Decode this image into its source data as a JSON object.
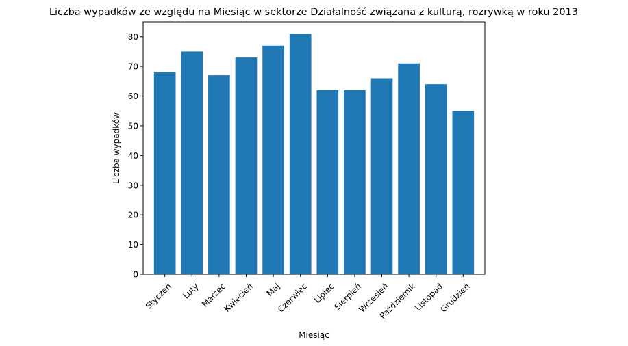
{
  "chart_data": {
    "type": "bar",
    "title": "Liczba wypadków ze względu na Miesiąc w sektorze Działalność związana z kulturą, rozrywką  w roku 2013",
    "xlabel": "Miesiąc",
    "ylabel": "Liczba wypadków",
    "categories": [
      "Styczeń",
      "Luty",
      "Marzec",
      "Kwiecień",
      "Maj",
      "Czerwiec",
      "Lipiec",
      "Sierpień",
      "Wrzesień",
      "Październik",
      "Listopad",
      "Grudzień"
    ],
    "values": [
      68,
      75,
      67,
      73,
      77,
      81,
      62,
      62,
      66,
      71,
      64,
      55
    ],
    "ylim": [
      0,
      85
    ],
    "yticks": [
      0,
      10,
      20,
      30,
      40,
      50,
      60,
      70,
      80
    ],
    "bar_color": "#1f77b4",
    "grid": false,
    "legend": "none"
  }
}
